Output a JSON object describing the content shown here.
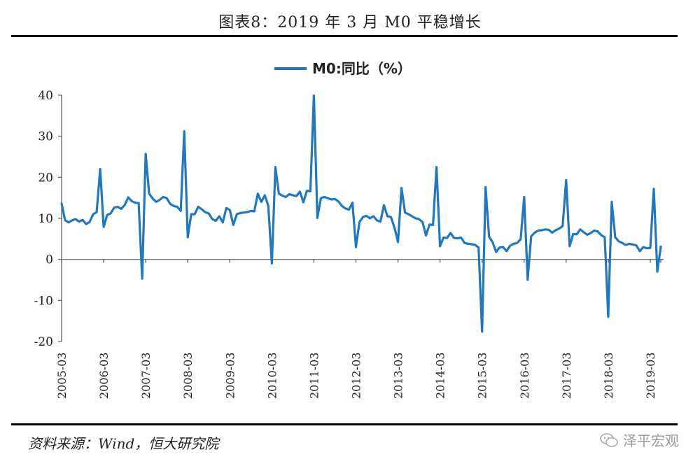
{
  "title": "图表8：2019 年 3 月 M0 平稳增长",
  "source": "资料来源：Wind，恒大研究院",
  "watermark": "泽平宏观",
  "colors": {
    "series": "#1f78c1",
    "axis": "#555555",
    "rule": "#000000"
  },
  "chart_data": {
    "type": "line",
    "title": "",
    "xlabel": "",
    "ylabel": "",
    "ylim": [
      -20,
      40
    ],
    "yticks": [
      -20,
      -10,
      0,
      10,
      20,
      30,
      40
    ],
    "xticks": [
      "2005-03",
      "2006-03",
      "2007-03",
      "2008-03",
      "2009-03",
      "2010-03",
      "2011-03",
      "2012-03",
      "2013-03",
      "2014-03",
      "2015-03",
      "2016-03",
      "2017-03",
      "2018-03",
      "2019-03"
    ],
    "x_start": "2005-03",
    "x_end": "2019-03",
    "grid": false,
    "legend_position": "top-center",
    "series": [
      {
        "name": "M0:同比（%）",
        "values": [
          13.6,
          9.5,
          9.0,
          9.5,
          9.8,
          9.2,
          9.6,
          8.6,
          9.1,
          11.0,
          11.5,
          22.0,
          7.9,
          10.8,
          11.2,
          12.6,
          12.8,
          12.3,
          13.2,
          15.1,
          14.2,
          13.8,
          13.7,
          -4.7,
          25.7,
          16.0,
          14.8,
          14.0,
          14.5,
          15.2,
          14.9,
          13.5,
          13.0,
          12.8,
          11.8,
          31.2,
          5.4,
          11.0,
          11.0,
          12.8,
          12.2,
          11.5,
          11.2,
          9.8,
          9.4,
          10.5,
          9.0,
          12.5,
          12.0,
          8.4,
          11.0,
          11.3,
          11.4,
          11.5,
          11.8,
          11.7,
          16.0,
          14.0,
          15.6,
          13.0,
          -1.0,
          22.5,
          16.0,
          15.5,
          15.2,
          15.9,
          15.6,
          15.4,
          16.5,
          13.9,
          16.7,
          16.6,
          39.9,
          10.1,
          14.9,
          15.2,
          14.9,
          14.6,
          14.7,
          14.1,
          13.0,
          12.4,
          12.1,
          13.8,
          3.0,
          9.1,
          10.3,
          10.6,
          10.0,
          10.5,
          9.5,
          9.2,
          13.2,
          10.5,
          10.3,
          7.7,
          4.2,
          17.4,
          11.4,
          11.0,
          10.5,
          10.0,
          9.8,
          9.1,
          5.8,
          8.5,
          8.4,
          22.5,
          3.2,
          5.3,
          5.2,
          6.4,
          5.2,
          5.1,
          5.3,
          4.0,
          3.8,
          3.7,
          3.5,
          2.9,
          -17.6,
          17.6,
          5.5,
          4.2,
          1.8,
          2.9,
          3.0,
          2.0,
          3.3,
          3.8,
          4.0,
          4.9,
          15.2,
          -5.0,
          5.6,
          6.5,
          7.0,
          7.1,
          7.3,
          7.2,
          6.5,
          7.1,
          7.5,
          8.1,
          19.3,
          3.2,
          6.2,
          6.1,
          7.3,
          6.6,
          6.0,
          6.4,
          7.0,
          6.8,
          5.9,
          5.4,
          -14.0,
          14.0,
          5.4,
          4.4,
          4.0,
          3.5,
          3.8,
          3.6,
          3.4,
          2.0,
          3.0,
          2.7,
          2.8,
          17.2,
          -3.0,
          3.1
        ]
      }
    ]
  }
}
